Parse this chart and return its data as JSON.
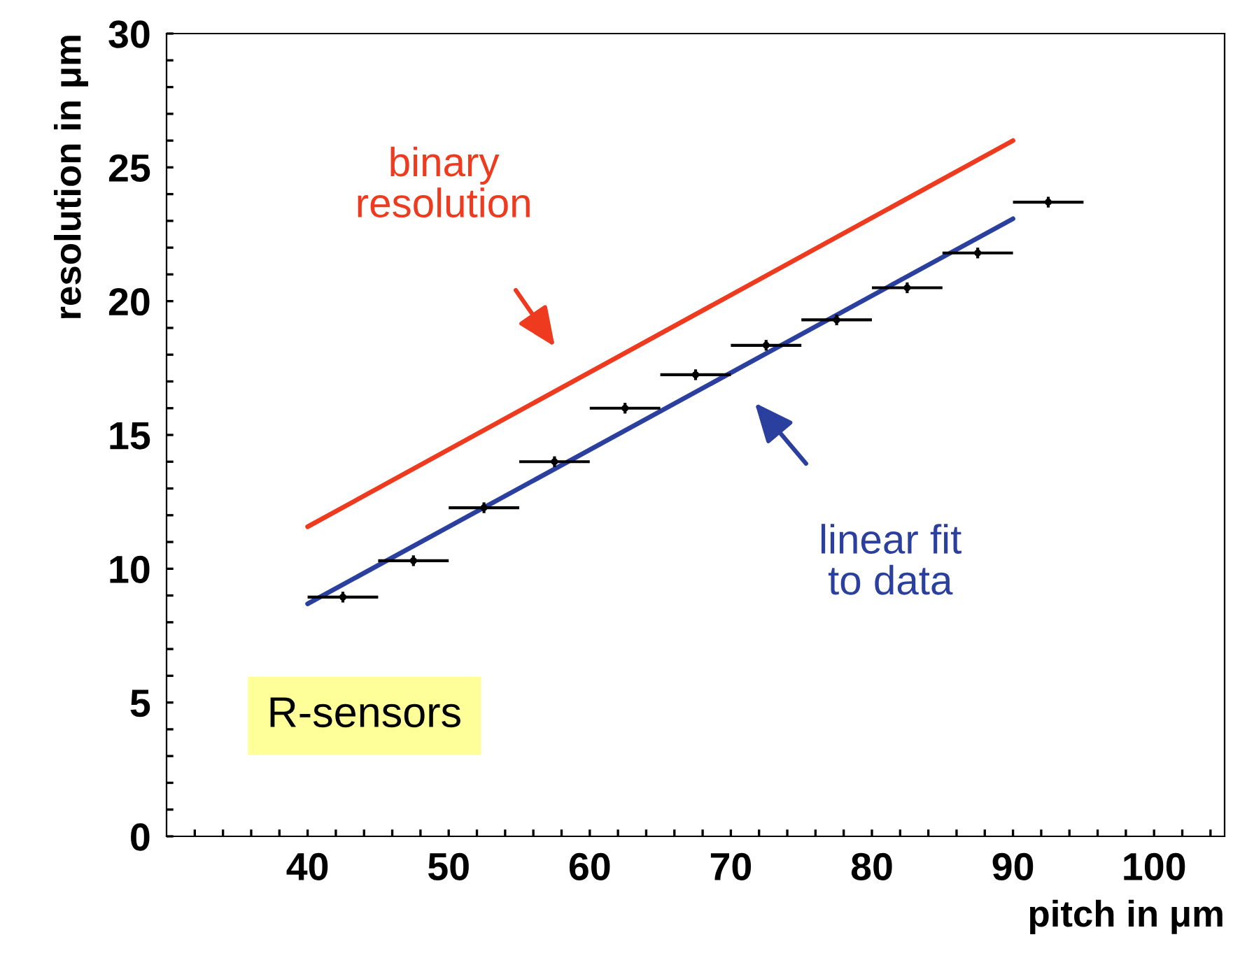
{
  "chart_data": {
    "type": "line",
    "marker": "none",
    "xlabel": "pitch in μm",
    "ylabel": "resolution in μm",
    "xlim": [
      30,
      105
    ],
    "ylim": [
      0,
      30
    ],
    "xticks": [
      {
        "value": 32,
        "label": null
      },
      {
        "value": 34,
        "label": null
      },
      {
        "value": 36,
        "label": null
      },
      {
        "value": 38,
        "label": null
      },
      40,
      {
        "value": 42,
        "label": null
      },
      {
        "value": 44,
        "label": null
      },
      {
        "value": 46,
        "label": null
      },
      {
        "value": 48,
        "label": null
      },
      50,
      {
        "value": 52,
        "label": null
      },
      {
        "value": 54,
        "label": null
      },
      {
        "value": 56,
        "label": null
      },
      {
        "value": 58,
        "label": null
      },
      60,
      {
        "value": 62,
        "label": null
      },
      {
        "value": 64,
        "label": null
      },
      {
        "value": 66,
        "label": null
      },
      {
        "value": 68,
        "label": null
      },
      70,
      {
        "value": 72,
        "label": null
      },
      {
        "value": 74,
        "label": null
      },
      {
        "value": 76,
        "label": null
      },
      {
        "value": 78,
        "label": null
      },
      80,
      {
        "value": 82,
        "label": null
      },
      {
        "value": 84,
        "label": null
      },
      {
        "value": 86,
        "label": null
      },
      {
        "value": 88,
        "label": null
      },
      90,
      {
        "value": 92,
        "label": null
      },
      {
        "value": 94,
        "label": null
      },
      {
        "value": 96,
        "label": null
      },
      {
        "value": 98,
        "label": null
      },
      100,
      {
        "value": 102,
        "label": null
      },
      {
        "value": 104,
        "label": null
      }
    ],
    "yticks": [
      0,
      {
        "value": 1,
        "label": null
      },
      {
        "value": 2,
        "label": null
      },
      {
        "value": 3,
        "label": null
      },
      {
        "value": 4,
        "label": null
      },
      5,
      {
        "value": 6,
        "label": null
      },
      {
        "value": 7,
        "label": null
      },
      {
        "value": 8,
        "label": null
      },
      {
        "value": 9,
        "label": null
      },
      10,
      {
        "value": 11,
        "label": null
      },
      {
        "value": 12,
        "label": null
      },
      {
        "value": 13,
        "label": null
      },
      {
        "value": 14,
        "label": null
      },
      15,
      {
        "value": 16,
        "label": null
      },
      {
        "value": 17,
        "label": null
      },
      {
        "value": 18,
        "label": null
      },
      {
        "value": 19,
        "label": null
      },
      20,
      {
        "value": 21,
        "label": null
      },
      {
        "value": 22,
        "label": null
      },
      {
        "value": 23,
        "label": null
      },
      {
        "value": 24,
        "label": null
      },
      25,
      {
        "value": 26,
        "label": null
      },
      {
        "value": 27,
        "label": null
      },
      {
        "value": 28,
        "label": null
      },
      {
        "value": 29,
        "label": null
      },
      30
    ],
    "grid": false,
    "legend": false,
    "series": [
      {
        "color": "#ee3a1e",
        "x": [
          40,
          90
        ],
        "values": [
          11.57,
          26.0
        ]
      },
      {
        "color": "#2a3f9e",
        "x": [
          40,
          90
        ],
        "values": [
          8.69,
          23.08
        ]
      },
      {
        "type": "scatter",
        "color": "#000000",
        "x": [
          42.5,
          47.5,
          52.5,
          57.5,
          62.5,
          67.5,
          72.5,
          77.5,
          82.5,
          87.5,
          92.5
        ],
        "values": [
          8.94,
          10.3,
          12.28,
          14.0,
          16.0,
          17.25,
          18.35,
          19.3,
          20.5,
          21.8,
          23.7
        ],
        "xerrors": [
          2.5,
          2.5,
          2.5,
          2.5,
          2.5,
          2.5,
          2.5,
          2.5,
          2.5,
          2.5,
          2.5
        ],
        "errors": [
          0.2,
          0.2,
          0.2,
          0.2,
          0.2,
          0.2,
          0.2,
          0.2,
          0.2,
          0.2,
          0.2
        ]
      }
    ],
    "annotations": [
      "binary\nresolution",
      "linear fit\nto data",
      "R-sensors"
    ]
  }
}
